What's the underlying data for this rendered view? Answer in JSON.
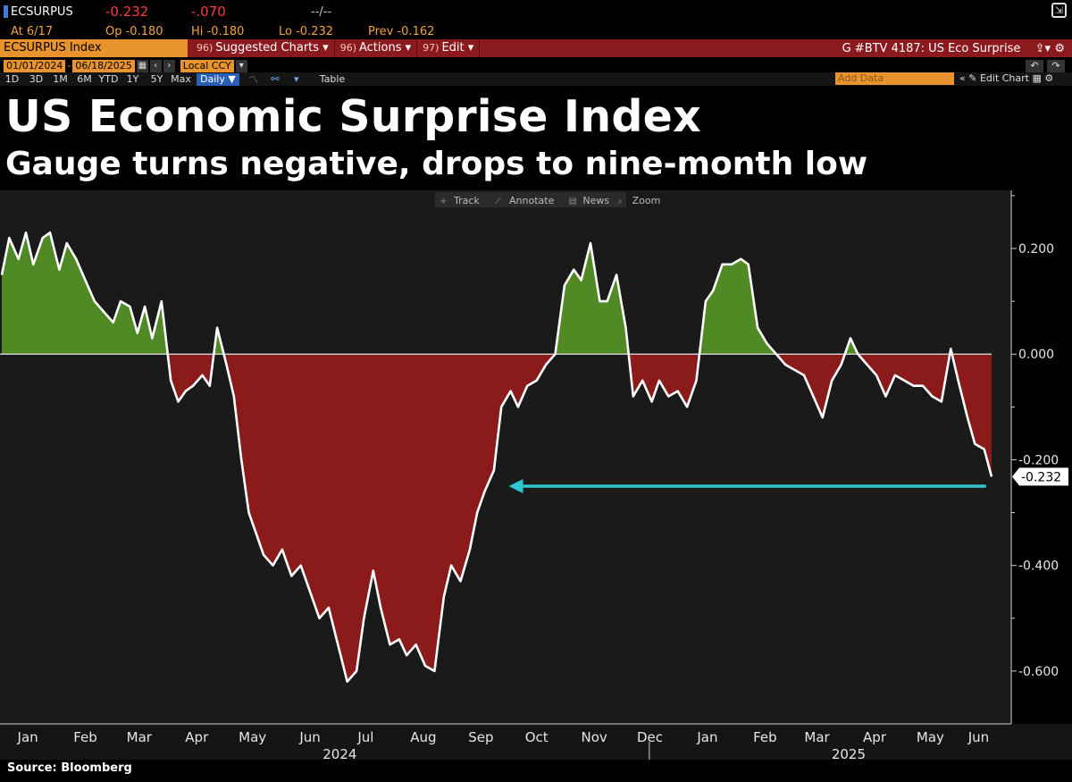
{
  "header": {
    "ticker": "ECSURPUS",
    "last": "-0.232",
    "change": "-.070",
    "time_placeholder": "--/--",
    "at_label": "At 6/17",
    "open_label": "Op -0.180",
    "high_label": "Hi -0.180",
    "low_label": "Lo -0.232",
    "prev_label": "Prev -0.162",
    "security": "ECSURPUS Index",
    "menus": [
      {
        "num": "96)",
        "label": "Suggested Charts ▾"
      },
      {
        "num": "96)",
        "label": "Actions ▾"
      },
      {
        "num": "97)",
        "label": "Edit ▾"
      }
    ],
    "chart_id": "G #BTV 4187: US Eco Surprise",
    "start_date": "01/01/2024",
    "end_date": "06/18/2025",
    "currency": "Local CCY",
    "periods": [
      "1D",
      "3D",
      "1M",
      "6M",
      "YTD",
      "1Y",
      "5Y",
      "Max"
    ],
    "frequency": "Daily ▼",
    "table_label": "Table",
    "add_data_placeholder": "Add Data",
    "edit_chart_label": "Edit Chart",
    "toolbar": [
      "Track",
      "Annotate",
      "News",
      "Zoom"
    ]
  },
  "title": "US Economic Surprise Index",
  "subtitle": "Gauge turns negative, drops to nine-month low",
  "source": "Source: Bloomberg",
  "chart_data": {
    "type": "area",
    "x_unit": "date",
    "ylim": [
      -0.7,
      0.31
    ],
    "yticks": [
      0.2,
      0.0,
      -0.2,
      -0.4,
      -0.6
    ],
    "ytick_labels": [
      "0.200",
      "0.000",
      "-0.200",
      "-0.400",
      "-0.600"
    ],
    "positive_color": "#4f8a25",
    "negative_color": "#8b1a1a",
    "line_color": "#ffffff",
    "background": "#1a1a1a",
    "last_value_label": "-0.232",
    "arrow_color": "#2ec8d0",
    "arrow_start": "2025-06-14",
    "arrow_end": "2024-09-30",
    "arrow_value": -0.25,
    "x_month_labels": [
      {
        "label": "Jan",
        "date": "2024-01-15"
      },
      {
        "label": "Feb",
        "date": "2024-02-15"
      },
      {
        "label": "Mar",
        "date": "2024-03-15"
      },
      {
        "label": "Apr",
        "date": "2024-04-15"
      },
      {
        "label": "May",
        "date": "2024-05-15"
      },
      {
        "label": "Jun",
        "date": "2024-06-15"
      },
      {
        "label": "Jul",
        "date": "2024-07-15"
      },
      {
        "label": "Aug",
        "date": "2024-08-15"
      },
      {
        "label": "Sep",
        "date": "2024-09-15"
      },
      {
        "label": "Oct",
        "date": "2024-10-15"
      },
      {
        "label": "Nov",
        "date": "2024-11-15"
      },
      {
        "label": "Dec",
        "date": "2024-12-15"
      },
      {
        "label": "Jan",
        "date": "2025-01-15"
      },
      {
        "label": "Feb",
        "date": "2025-02-15"
      },
      {
        "label": "Mar",
        "date": "2025-03-15"
      },
      {
        "label": "Apr",
        "date": "2025-04-15"
      },
      {
        "label": "May",
        "date": "2025-05-15"
      },
      {
        "label": "Jun",
        "date": "2025-06-10"
      }
    ],
    "x_year_labels": [
      {
        "label": "2024",
        "date": "2024-07-01"
      },
      {
        "label": "2025",
        "date": "2025-04-01"
      }
    ],
    "year_divider": "2025-01-01",
    "x": [
      "2024-01-01",
      "2024-01-05",
      "2024-01-10",
      "2024-01-14",
      "2024-01-18",
      "2024-01-23",
      "2024-01-27",
      "2024-02-01",
      "2024-02-05",
      "2024-02-10",
      "2024-02-15",
      "2024-02-20",
      "2024-02-25",
      "2024-03-01",
      "2024-03-05",
      "2024-03-10",
      "2024-03-14",
      "2024-03-18",
      "2024-03-22",
      "2024-03-27",
      "2024-04-01",
      "2024-04-05",
      "2024-04-09",
      "2024-04-13",
      "2024-04-18",
      "2024-04-22",
      "2024-04-26",
      "2024-05-01",
      "2024-05-05",
      "2024-05-09",
      "2024-05-13",
      "2024-05-17",
      "2024-05-21",
      "2024-05-26",
      "2024-05-31",
      "2024-06-05",
      "2024-06-10",
      "2024-06-15",
      "2024-06-20",
      "2024-06-25",
      "2024-06-30",
      "2024-07-05",
      "2024-07-10",
      "2024-07-14",
      "2024-07-19",
      "2024-07-23",
      "2024-07-28",
      "2024-08-02",
      "2024-08-06",
      "2024-08-11",
      "2024-08-16",
      "2024-08-21",
      "2024-08-26",
      "2024-08-30",
      "2024-09-04",
      "2024-09-09",
      "2024-09-13",
      "2024-09-17",
      "2024-09-22",
      "2024-09-26",
      "2024-10-01",
      "2024-10-05",
      "2024-10-10",
      "2024-10-15",
      "2024-10-20",
      "2024-10-25",
      "2024-10-30",
      "2024-11-04",
      "2024-11-08",
      "2024-11-13",
      "2024-11-18",
      "2024-11-22",
      "2024-11-27",
      "2024-12-02",
      "2024-12-06",
      "2024-12-11",
      "2024-12-16",
      "2024-12-20",
      "2024-12-25",
      "2024-12-30",
      "2025-01-04",
      "2025-01-09",
      "2025-01-14",
      "2025-01-18",
      "2025-01-23",
      "2025-01-28",
      "2025-02-02",
      "2025-02-06",
      "2025-02-11",
      "2025-02-16",
      "2025-02-21",
      "2025-02-26",
      "2025-03-03",
      "2025-03-08",
      "2025-03-13",
      "2025-03-18",
      "2025-03-23",
      "2025-03-28",
      "2025-04-02",
      "2025-04-06",
      "2025-04-11",
      "2025-04-16",
      "2025-04-21",
      "2025-04-26",
      "2025-05-01",
      "2025-05-06",
      "2025-05-11",
      "2025-05-16",
      "2025-05-21",
      "2025-05-26",
      "2025-05-30",
      "2025-06-04",
      "2025-06-08",
      "2025-06-13",
      "2025-06-17"
    ],
    "y": [
      0.15,
      0.22,
      0.18,
      0.23,
      0.17,
      0.22,
      0.23,
      0.16,
      0.21,
      0.18,
      0.14,
      0.1,
      0.08,
      0.06,
      0.1,
      0.09,
      0.04,
      0.09,
      0.03,
      0.1,
      -0.05,
      -0.09,
      -0.07,
      -0.06,
      -0.04,
      -0.06,
      0.05,
      -0.02,
      -0.08,
      -0.2,
      -0.3,
      -0.34,
      -0.38,
      -0.4,
      -0.37,
      -0.42,
      -0.4,
      -0.45,
      -0.5,
      -0.48,
      -0.55,
      -0.62,
      -0.6,
      -0.5,
      -0.41,
      -0.48,
      -0.55,
      -0.54,
      -0.57,
      -0.55,
      -0.59,
      -0.6,
      -0.46,
      -0.4,
      -0.43,
      -0.37,
      -0.3,
      -0.26,
      -0.22,
      -0.1,
      -0.07,
      -0.1,
      -0.06,
      -0.05,
      -0.02,
      0.0,
      0.13,
      0.16,
      0.14,
      0.21,
      0.1,
      0.1,
      0.15,
      0.05,
      -0.08,
      -0.05,
      -0.09,
      -0.05,
      -0.08,
      -0.07,
      -0.1,
      -0.05,
      0.1,
      0.12,
      0.17,
      0.17,
      0.18,
      0.17,
      0.05,
      0.02,
      0.0,
      -0.02,
      -0.03,
      -0.04,
      -0.08,
      -0.12,
      -0.05,
      -0.02,
      0.03,
      0.0,
      -0.02,
      -0.04,
      -0.08,
      -0.04,
      -0.05,
      -0.06,
      -0.06,
      -0.08,
      -0.09,
      0.01,
      -0.05,
      -0.12,
      -0.17,
      -0.18,
      -0.232
    ]
  }
}
